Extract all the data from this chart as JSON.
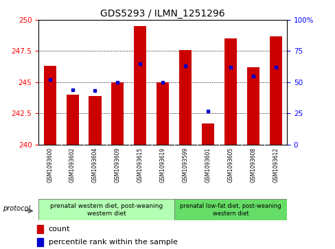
{
  "title": "GDS5293 / ILMN_1251296",
  "samples": [
    "GSM1093600",
    "GSM1093602",
    "GSM1093604",
    "GSM1093609",
    "GSM1093615",
    "GSM1093619",
    "GSM1093599",
    "GSM1093601",
    "GSM1093605",
    "GSM1093608",
    "GSM1093612"
  ],
  "counts": [
    246.3,
    244.0,
    243.9,
    245.0,
    249.5,
    245.0,
    247.6,
    241.7,
    248.5,
    246.2,
    248.7
  ],
  "percentiles": [
    52,
    44,
    43,
    50,
    65,
    50,
    63,
    27,
    62,
    55,
    62
  ],
  "ylim_left": [
    240,
    250
  ],
  "ylim_right": [
    0,
    100
  ],
  "yticks_left": [
    240,
    242.5,
    245,
    247.5,
    250
  ],
  "yticks_right": [
    0,
    25,
    50,
    75,
    100
  ],
  "bar_color": "#cc0000",
  "dot_color": "#0000cc",
  "group1_label": "prenatal western diet, post-weaning\nwestern diet",
  "group2_label": "prenatal low-fat diet, post-weaning\nwestern diet",
  "group1_count": 6,
  "group2_count": 5,
  "protocol_label": "protocol",
  "legend_count": "count",
  "legend_percentile": "percentile rank within the sample",
  "sample_bg": "#d3d3d3",
  "group1_bg": "#b3ffb3",
  "group2_bg": "#66dd66",
  "plot_bg": "white"
}
